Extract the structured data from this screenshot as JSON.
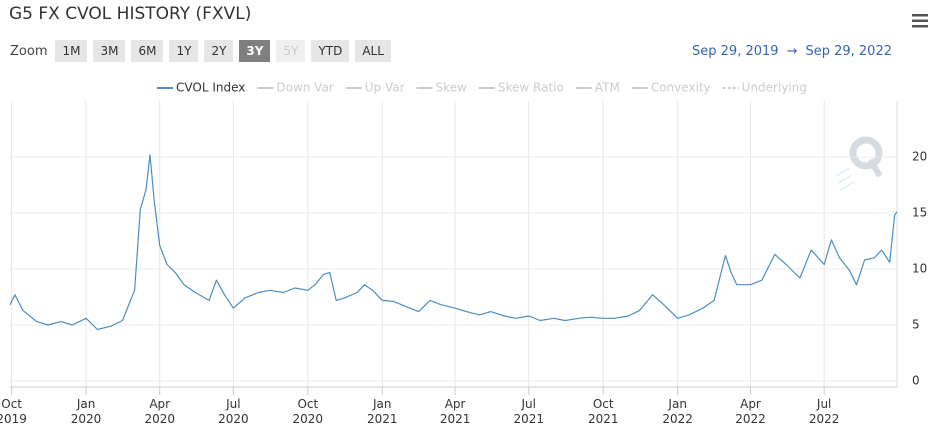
{
  "ui": {
    "zoom_label": "Zoom",
    "buttons": [
      "1M",
      "3M",
      "6M",
      "1Y",
      "2Y",
      "3Y",
      "5Y",
      "YTD",
      "ALL"
    ],
    "selected": "3Y",
    "disabled": [
      "5Y"
    ],
    "range_from": "Sep 29, 2019",
    "range_separator": "→",
    "range_to": "Sep 29, 2022"
  },
  "chart_data": {
    "type": "line",
    "title": "G5 FX CVOL HISTORY (FXVL)",
    "x": [
      "2019-09-29",
      "2019-10-05",
      "2019-10-15",
      "2019-11-01",
      "2019-11-15",
      "2019-12-01",
      "2019-12-15",
      "2020-01-01",
      "2020-01-15",
      "2020-02-01",
      "2020-02-15",
      "2020-03-01",
      "2020-03-08",
      "2020-03-15",
      "2020-03-20",
      "2020-03-25",
      "2020-04-01",
      "2020-04-10",
      "2020-04-20",
      "2020-05-01",
      "2020-05-15",
      "2020-06-01",
      "2020-06-10",
      "2020-06-20",
      "2020-07-01",
      "2020-07-15",
      "2020-08-01",
      "2020-08-15",
      "2020-09-01",
      "2020-09-15",
      "2020-10-01",
      "2020-10-10",
      "2020-10-20",
      "2020-10-28",
      "2020-11-05",
      "2020-11-15",
      "2020-12-01",
      "2020-12-10",
      "2020-12-20",
      "2021-01-01",
      "2021-01-15",
      "2021-02-01",
      "2021-02-15",
      "2021-03-01",
      "2021-03-15",
      "2021-04-01",
      "2021-04-15",
      "2021-05-01",
      "2021-05-15",
      "2021-06-01",
      "2021-06-15",
      "2021-07-01",
      "2021-07-15",
      "2021-08-01",
      "2021-08-15",
      "2021-09-01",
      "2021-09-15",
      "2021-10-01",
      "2021-10-15",
      "2021-11-01",
      "2021-11-15",
      "2021-12-01",
      "2021-12-15",
      "2022-01-01",
      "2022-01-15",
      "2022-02-01",
      "2022-02-15",
      "2022-03-01",
      "2022-03-08",
      "2022-03-15",
      "2022-04-01",
      "2022-04-15",
      "2022-05-01",
      "2022-05-15",
      "2022-06-01",
      "2022-06-15",
      "2022-07-01",
      "2022-07-10",
      "2022-07-20",
      "2022-08-01",
      "2022-08-10",
      "2022-08-20",
      "2022-09-01",
      "2022-09-10",
      "2022-09-20",
      "2022-09-26",
      "2022-09-29"
    ],
    "series": [
      {
        "name": "CVOL Index",
        "color": "#4a8ec4",
        "visible": true,
        "values": [
          6.8,
          7.7,
          6.3,
          5.3,
          5.0,
          5.3,
          5.0,
          5.6,
          4.6,
          4.9,
          5.4,
          8.1,
          15.3,
          17.1,
          20.2,
          16.2,
          12.1,
          10.4,
          9.7,
          8.6,
          7.9,
          7.2,
          9.0,
          7.7,
          6.5,
          7.4,
          7.9,
          8.1,
          7.9,
          8.3,
          8.1,
          8.6,
          9.5,
          9.7,
          7.2,
          7.4,
          7.9,
          8.6,
          8.1,
          7.2,
          7.1,
          6.6,
          6.2,
          7.2,
          6.8,
          6.5,
          6.2,
          5.9,
          6.2,
          5.8,
          5.6,
          5.8,
          5.4,
          5.6,
          5.4,
          5.6,
          5.7,
          5.6,
          5.6,
          5.8,
          6.3,
          7.7,
          6.8,
          5.6,
          5.9,
          6.5,
          7.2,
          11.2,
          9.7,
          8.6,
          8.6,
          9.0,
          11.3,
          10.4,
          9.2,
          11.7,
          10.4,
          12.6,
          11.0,
          9.9,
          8.6,
          10.8,
          11.0,
          11.7,
          10.6,
          14.8,
          15.1
        ]
      },
      {
        "name": "Down Var",
        "color": "#cccccc",
        "visible": false
      },
      {
        "name": "Up Var",
        "color": "#cccccc",
        "visible": false
      },
      {
        "name": "Skew",
        "color": "#cccccc",
        "visible": false
      },
      {
        "name": "Skew Ratio",
        "color": "#cccccc",
        "visible": false
      },
      {
        "name": "ATM",
        "color": "#cccccc",
        "visible": false
      },
      {
        "name": "Convexity",
        "color": "#cccccc",
        "visible": false
      },
      {
        "name": "Underlying",
        "color": "#cccccc",
        "visible": false,
        "dashed": true
      }
    ],
    "xlim": [
      "2019-09-29",
      "2022-09-29"
    ],
    "xticks": [
      {
        "value": "2019-10-01",
        "label": "Oct 2019"
      },
      {
        "value": "2020-01-01",
        "label": "Jan 2020"
      },
      {
        "value": "2020-04-01",
        "label": "Apr 2020"
      },
      {
        "value": "2020-07-01",
        "label": "Jul 2020"
      },
      {
        "value": "2020-10-01",
        "label": "Oct 2020"
      },
      {
        "value": "2021-01-01",
        "label": "Jan 2021"
      },
      {
        "value": "2021-04-01",
        "label": "Apr 2021"
      },
      {
        "value": "2021-07-01",
        "label": "Jul 2021"
      },
      {
        "value": "2021-10-01",
        "label": "Oct 2021"
      },
      {
        "value": "2022-01-01",
        "label": "Jan 2022"
      },
      {
        "value": "2022-04-01",
        "label": "Apr 2022"
      },
      {
        "value": "2022-07-01",
        "label": "Jul 2022"
      }
    ],
    "ylim": [
      0,
      25
    ],
    "yticks": [
      0,
      5,
      10,
      15,
      20
    ],
    "grid": true
  }
}
